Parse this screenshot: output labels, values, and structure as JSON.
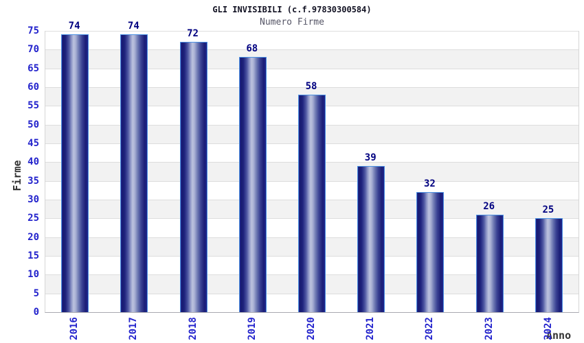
{
  "chart_data": {
    "type": "bar",
    "title": "GLI INVISIBILI (c.f.97830300584)",
    "subtitle": "Numero Firme",
    "xlabel": "Anno",
    "ylabel": "Firme",
    "categories": [
      "2016",
      "2017",
      "2018",
      "2019",
      "2020",
      "2021",
      "2022",
      "2023",
      "2024"
    ],
    "values": [
      74,
      74,
      72,
      68,
      58,
      39,
      32,
      26,
      25
    ],
    "ylim": [
      0,
      75
    ],
    "ytick_step": 5,
    "yticks": [
      0,
      5,
      10,
      15,
      20,
      25,
      30,
      35,
      40,
      45,
      50,
      55,
      60,
      65,
      70,
      75
    ],
    "grid": true,
    "legend_position": "none",
    "bar_labels_shown": true,
    "colors": {
      "bar_dark": "#191970",
      "bar_highlight": "#bcc2de",
      "bar_border": "#4a90e2",
      "tick_label": "#2323cc",
      "value_label": "#000080",
      "band_gray": "#f2f2f2",
      "gridline": "#dddddd",
      "axis_line": "#a8a8b0",
      "title": "#111122",
      "subtitle": "#555566",
      "axis_title": "#333333"
    }
  }
}
